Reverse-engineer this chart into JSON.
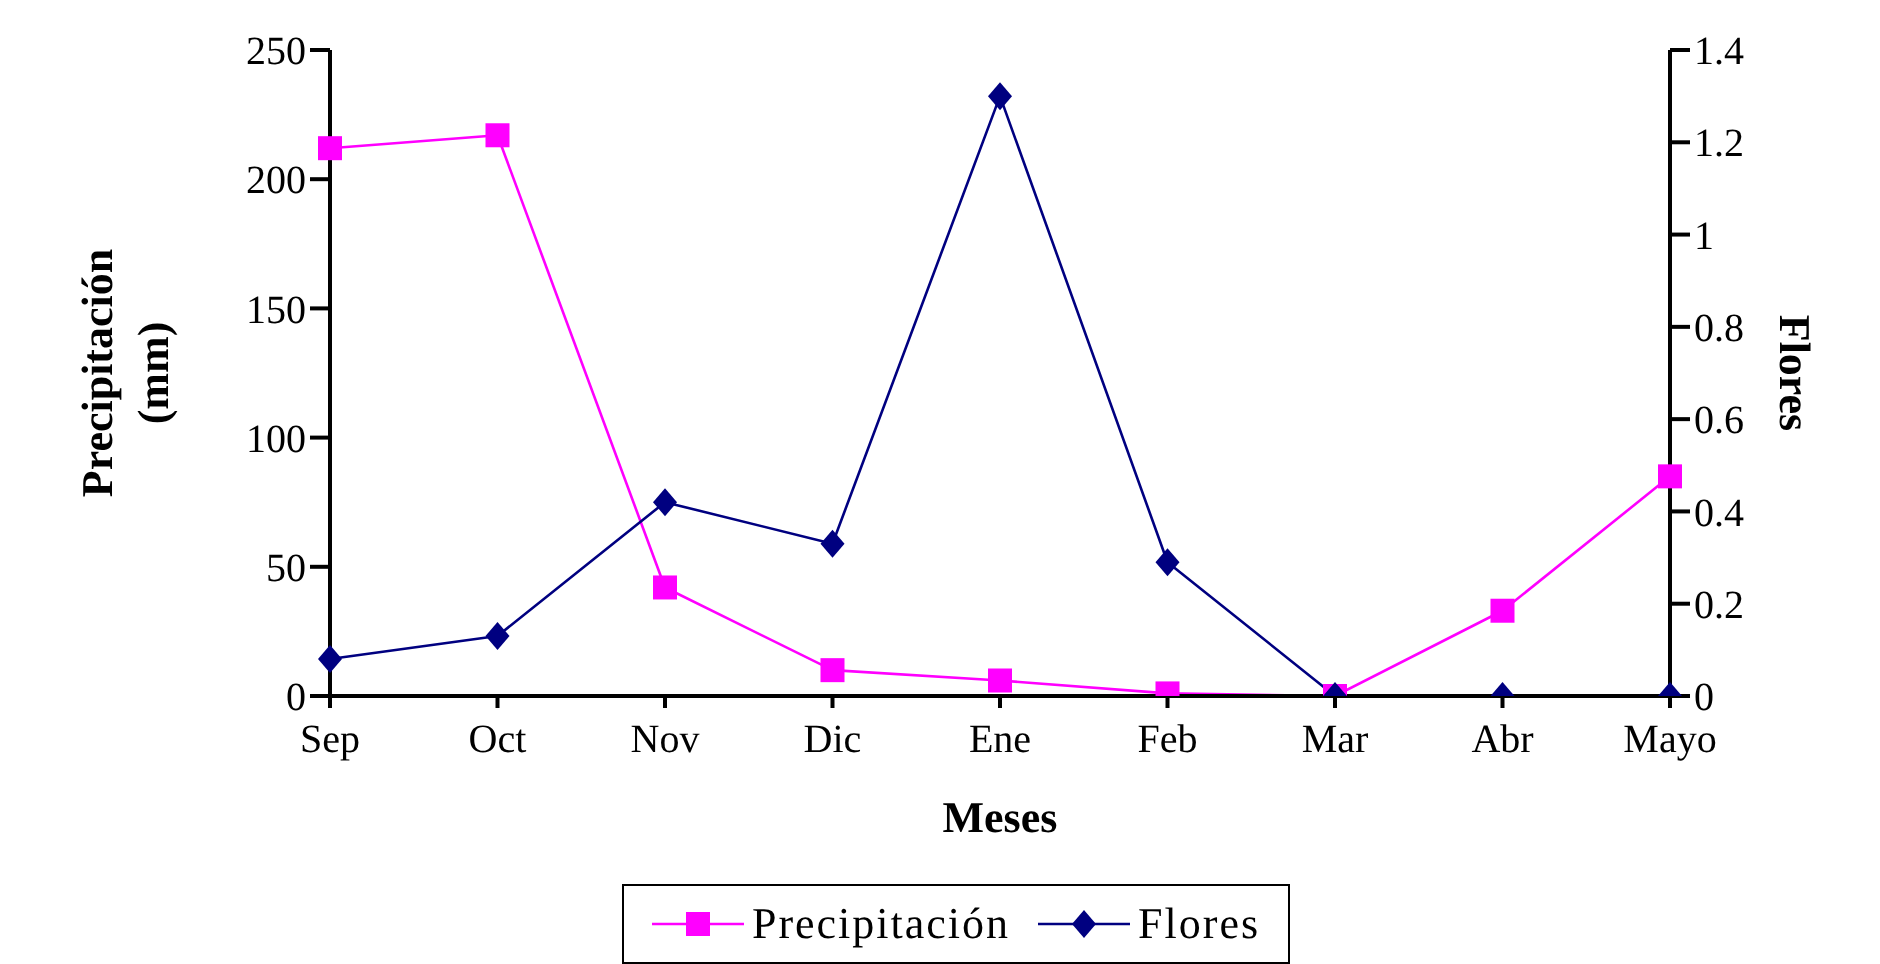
{
  "chart_data": {
    "type": "line",
    "xlabel": "Meses",
    "ylabel": "Precipitación (mm)",
    "y2label": "Flores",
    "categories": [
      "Sep",
      "Oct",
      "Nov",
      "Dic",
      "Ene",
      "Feb",
      "Mar",
      "Abr",
      "Mayo"
    ],
    "series": [
      {
        "name": "Precipitación",
        "color": "#ff00ff",
        "marker": "square",
        "values": [
          212,
          217,
          42,
          10,
          6,
          1,
          0,
          33,
          85
        ]
      },
      {
        "name": "Flores",
        "color": "#000080",
        "marker": "diamond",
        "axis": "y2",
        "values": [
          0.08,
          0.13,
          0.42,
          0.33,
          1.3,
          0.29,
          0,
          0,
          0
        ]
      }
    ],
    "ylim": [
      0,
      250
    ],
    "yticks": [
      0,
      50,
      100,
      150,
      200,
      250
    ],
    "y2lim": [
      0,
      1.4
    ],
    "y2ticks": [
      0,
      0.2,
      0.4,
      0.6,
      0.8,
      1,
      1.2,
      1.4
    ],
    "legend": "bottom",
    "grid": false
  }
}
